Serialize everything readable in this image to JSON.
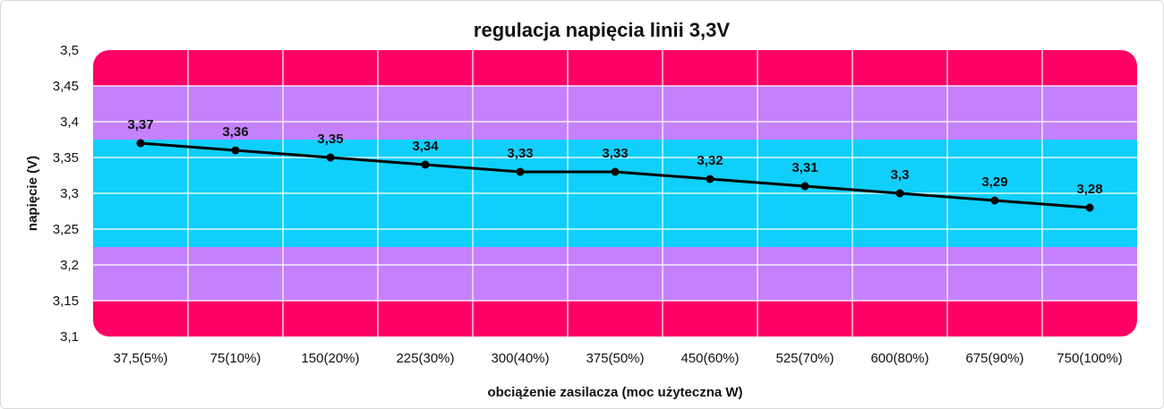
{
  "chart_data": {
    "type": "line",
    "title": "regulacja napięcia linii 3,3V",
    "xlabel": "obciążenie zasilacza (moc użyteczna W)",
    "ylabel": "napięcie (V)",
    "categories": [
      "37,5(5%)",
      "75(10%)",
      "150(20%)",
      "225(30%)",
      "300(40%)",
      "375(50%)",
      "450(60%)",
      "525(70%)",
      "600(80%)",
      "675(90%)",
      "750(100%)"
    ],
    "values": [
      3.37,
      3.36,
      3.35,
      3.34,
      3.33,
      3.33,
      3.32,
      3.31,
      3.3,
      3.29,
      3.28
    ],
    "value_labels": [
      "3,37",
      "3,36",
      "3,35",
      "3,34",
      "3,33",
      "3,33",
      "3,32",
      "3,31",
      "3,3",
      "3,29",
      "3,28"
    ],
    "ylim": [
      3.1,
      3.5
    ],
    "yticks": [
      3.1,
      3.15,
      3.2,
      3.25,
      3.3,
      3.35,
      3.4,
      3.45,
      3.5
    ],
    "ytick_labels": [
      "3,1",
      "3,15",
      "3,2",
      "3,25",
      "3,3",
      "3,35",
      "3,4",
      "3,45",
      "3,5"
    ],
    "grid": true,
    "legend": "none",
    "bands": [
      {
        "from": 3.1,
        "to": 3.15,
        "color": "#ff0066"
      },
      {
        "from": 3.15,
        "to": 3.225,
        "color": "#c580fc"
      },
      {
        "from": 3.225,
        "to": 3.375,
        "color": "#10cffb"
      },
      {
        "from": 3.375,
        "to": 3.45,
        "color": "#c580fc"
      },
      {
        "from": 3.45,
        "to": 3.5,
        "color": "#ff0066"
      }
    ],
    "line_color": "#000000"
  }
}
